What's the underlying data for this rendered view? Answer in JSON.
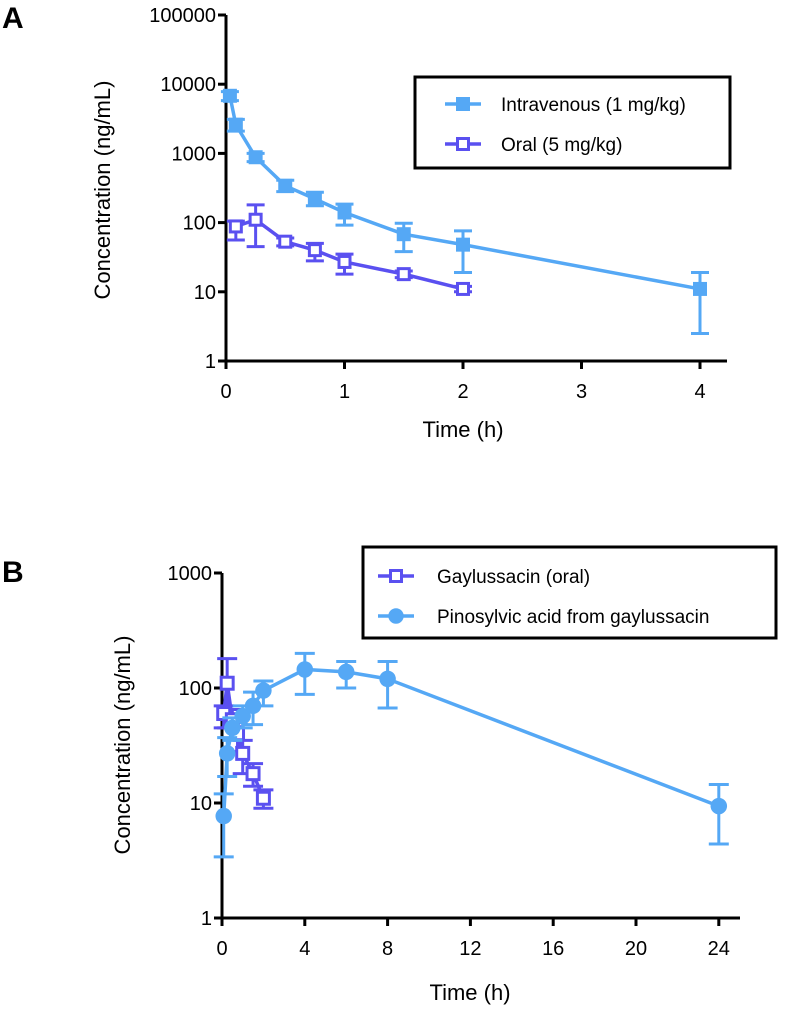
{
  "colors": {
    "iv": "#55A8F5",
    "oral": "#5A50F0",
    "axis": "#000000"
  },
  "chart_data": [
    {
      "type": "line",
      "panel_label": "A",
      "xlabel": "Time (h)",
      "ylabel": "Concentration (ng/mL)",
      "yscale": "log",
      "xlim": [
        0,
        4.2
      ],
      "ylim": [
        1,
        100000
      ],
      "xticks": [
        "0",
        "1",
        "2",
        "3",
        "4"
      ],
      "xtick_values": [
        0,
        1,
        2,
        3,
        4
      ],
      "yticks": [
        "1",
        "10",
        "100",
        "1000",
        "10000",
        "100000"
      ],
      "ytick_values": [
        1,
        10,
        100,
        1000,
        10000,
        100000
      ],
      "legend_position": "top-right",
      "series": [
        {
          "name": "Intravenous (1 mg/kg)",
          "marker": "filled-square",
          "color_key": "iv",
          "x": [
            0.033,
            0.083,
            0.25,
            0.5,
            0.75,
            1,
            1.5,
            2,
            4
          ],
          "y": [
            6800,
            2600,
            880,
            340,
            220,
            140,
            68,
            48,
            11
          ],
          "err_low": [
            5800,
            2100,
            760,
            280,
            175,
            92,
            38,
            19,
            2.5
          ],
          "err_high": [
            7800,
            3100,
            1000,
            410,
            275,
            185,
            98,
            76,
            19
          ]
        },
        {
          "name": "Oral (5 mg/kg)",
          "marker": "open-square",
          "color_key": "oral",
          "x": [
            0.083,
            0.25,
            0.5,
            0.75,
            1,
            1.5,
            2
          ],
          "y": [
            88,
            110,
            53,
            40,
            27,
            18,
            11
          ],
          "err_low": [
            56,
            45,
            46,
            28,
            18,
            16,
            10
          ],
          "err_high": [
            105,
            180,
            60,
            50,
            35,
            20,
            12
          ]
        }
      ]
    },
    {
      "type": "line",
      "panel_label": "B",
      "xlabel": "Time (h)",
      "ylabel": "Concentration (ng/mL)",
      "yscale": "log",
      "xlim": [
        0,
        25.2
      ],
      "ylim": [
        1,
        1000
      ],
      "xticks": [
        "0",
        "4",
        "8",
        "12",
        "16",
        "20",
        "24"
      ],
      "xtick_values": [
        0,
        4,
        8,
        12,
        16,
        20,
        24
      ],
      "yticks": [
        "1",
        "10",
        "100",
        "1000"
      ],
      "ytick_values": [
        1,
        10,
        100,
        1000
      ],
      "legend_position": "top-right",
      "series": [
        {
          "name": "Gaylussacin (oral)",
          "marker": "open-square",
          "color_key": "oral",
          "x": [
            0.083,
            0.25,
            0.5,
            0.75,
            1,
            1.5,
            2
          ],
          "y": [
            60,
            110,
            53,
            40,
            27,
            18,
            11
          ],
          "err_low": [
            45,
            45,
            46,
            28,
            18,
            14,
            9
          ],
          "err_high": [
            70,
            180,
            65,
            50,
            35,
            22,
            13
          ]
        },
        {
          "name": "Pinosylvic acid from gaylussacin",
          "marker": "filled-circle",
          "color_key": "iv",
          "x": [
            0.083,
            0.25,
            0.5,
            1,
            1.5,
            2,
            4,
            6,
            8,
            24
          ],
          "y": [
            7.7,
            27,
            45,
            57,
            70,
            95,
            145,
            138,
            120,
            9.4
          ],
          "err_low": [
            3.4,
            17,
            35,
            45,
            48,
            70,
            88,
            100,
            67,
            4.4
          ],
          "err_high": [
            12,
            37,
            55,
            70,
            92,
            115,
            200,
            170,
            170,
            14.5
          ]
        }
      ]
    }
  ]
}
